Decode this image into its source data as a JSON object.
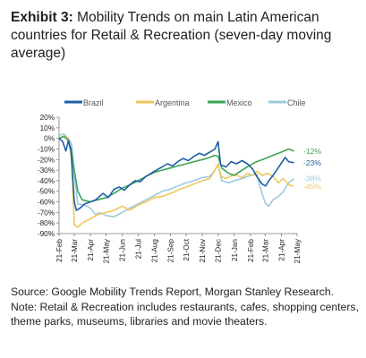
{
  "title": {
    "lead": "Exhibit 3:",
    "text": "Mobility Trends on main Latin American countries for Retail & Recreation (seven-day moving average)"
  },
  "source": "Source: Google Mobility Trends Report, Morgan Stanley Research. Note: Retail & Recreation includes restaurants, cafes, shopping centers, theme parks, museums, libraries and movie theaters.",
  "colors": {
    "Brazil": "#1f5fa6",
    "Argentina": "#f0c75e",
    "Mexico": "#3aa457",
    "Chile": "#9ccbe0",
    "axis": "#7a7a7a",
    "text": "#222222"
  },
  "chart_data": {
    "type": "line",
    "legend_position": "top",
    "grid": false,
    "ylim": [
      -90,
      20
    ],
    "yticks": [
      20,
      10,
      0,
      -10,
      -20,
      -30,
      -40,
      -50,
      -60,
      -70,
      -80,
      -90
    ],
    "ytick_labels": [
      "20%",
      "10%",
      "0%",
      "-10%",
      "-20%",
      "-30%",
      "-40%",
      "-50%",
      "-60%",
      "-70%",
      "-80%",
      "-90%"
    ],
    "xlim": [
      "2020-02-21",
      "2021-05-21"
    ],
    "xticks": [
      "2020-02-21",
      "2020-03-21",
      "2020-04-21",
      "2020-05-21",
      "2020-06-21",
      "2020-07-21",
      "2020-08-21",
      "2020-09-21",
      "2020-10-21",
      "2020-11-21",
      "2020-12-21",
      "2021-01-21",
      "2021-02-21",
      "2021-03-21",
      "2021-04-21",
      "2021-05-21"
    ],
    "xtick_labels": [
      "21-Feb",
      "21-Mar",
      "21-Apr",
      "21-May",
      "21-Jun",
      "21-Jul",
      "21-Aug",
      "21-Sep",
      "21-Oct",
      "21-Nov",
      "21-Dec",
      "21-Jan",
      "21-Feb",
      "21-Mar",
      "21-Apr",
      "21-May"
    ],
    "series": [
      {
        "name": "Brazil",
        "end_label": "-23%",
        "points": [
          [
            "2020-02-21",
            0
          ],
          [
            "2020-02-28",
            -3
          ],
          [
            "2020-03-05",
            -12
          ],
          [
            "2020-03-10",
            -2
          ],
          [
            "2020-03-15",
            -12
          ],
          [
            "2020-03-21",
            -60
          ],
          [
            "2020-03-25",
            -68
          ],
          [
            "2020-04-01",
            -66
          ],
          [
            "2020-04-10",
            -62
          ],
          [
            "2020-04-21",
            -60
          ],
          [
            "2020-05-01",
            -58
          ],
          [
            "2020-05-15",
            -52
          ],
          [
            "2020-05-25",
            -56
          ],
          [
            "2020-06-05",
            -48
          ],
          [
            "2020-06-15",
            -46
          ],
          [
            "2020-06-25",
            -49
          ],
          [
            "2020-07-05",
            -44
          ],
          [
            "2020-07-15",
            -40
          ],
          [
            "2020-07-25",
            -41
          ],
          [
            "2020-08-05",
            -36
          ],
          [
            "2020-08-15",
            -33
          ],
          [
            "2020-08-25",
            -30
          ],
          [
            "2020-09-05",
            -27
          ],
          [
            "2020-09-15",
            -24
          ],
          [
            "2020-09-25",
            -26
          ],
          [
            "2020-10-05",
            -22
          ],
          [
            "2020-10-15",
            -19
          ],
          [
            "2020-10-25",
            -21
          ],
          [
            "2020-11-05",
            -17
          ],
          [
            "2020-11-15",
            -14
          ],
          [
            "2020-11-25",
            -16
          ],
          [
            "2020-12-05",
            -13
          ],
          [
            "2020-12-15",
            -10
          ],
          [
            "2020-12-21",
            -3
          ],
          [
            "2020-12-26",
            -25
          ],
          [
            "2021-01-05",
            -27
          ],
          [
            "2021-01-15",
            -22
          ],
          [
            "2021-01-25",
            -24
          ],
          [
            "2021-02-05",
            -21
          ],
          [
            "2021-02-15",
            -24
          ],
          [
            "2021-02-25",
            -29
          ],
          [
            "2021-03-05",
            -36
          ],
          [
            "2021-03-15",
            -43
          ],
          [
            "2021-03-22",
            -45
          ],
          [
            "2021-03-28",
            -40
          ],
          [
            "2021-04-05",
            -35
          ],
          [
            "2021-04-12",
            -30
          ],
          [
            "2021-04-20",
            -24
          ],
          [
            "2021-04-28",
            -18
          ],
          [
            "2021-05-05",
            -22
          ],
          [
            "2021-05-15",
            -23
          ]
        ]
      },
      {
        "name": "Argentina",
        "end_label": "-45%",
        "points": [
          [
            "2020-02-21",
            0
          ],
          [
            "2020-03-01",
            2
          ],
          [
            "2020-03-10",
            0
          ],
          [
            "2020-03-16",
            -20
          ],
          [
            "2020-03-21",
            -82
          ],
          [
            "2020-03-28",
            -84
          ],
          [
            "2020-04-05",
            -80
          ],
          [
            "2020-04-21",
            -76
          ],
          [
            "2020-05-05",
            -72
          ],
          [
            "2020-05-21",
            -70
          ],
          [
            "2020-06-05",
            -68
          ],
          [
            "2020-06-21",
            -64
          ],
          [
            "2020-07-05",
            -68
          ],
          [
            "2020-07-21",
            -63
          ],
          [
            "2020-08-05",
            -60
          ],
          [
            "2020-08-21",
            -56
          ],
          [
            "2020-09-05",
            -55
          ],
          [
            "2020-09-21",
            -52
          ],
          [
            "2020-10-05",
            -49
          ],
          [
            "2020-10-21",
            -46
          ],
          [
            "2020-11-05",
            -43
          ],
          [
            "2020-11-21",
            -40
          ],
          [
            "2020-12-05",
            -38
          ],
          [
            "2020-12-15",
            -30
          ],
          [
            "2020-12-21",
            -24
          ],
          [
            "2020-12-27",
            -36
          ],
          [
            "2021-01-05",
            -38
          ],
          [
            "2021-01-21",
            -34
          ],
          [
            "2021-02-05",
            -37
          ],
          [
            "2021-02-15",
            -33
          ],
          [
            "2021-02-25",
            -35
          ],
          [
            "2021-03-05",
            -31
          ],
          [
            "2021-03-15",
            -35
          ],
          [
            "2021-03-25",
            -33
          ],
          [
            "2021-04-05",
            -36
          ],
          [
            "2021-04-15",
            -42
          ],
          [
            "2021-04-25",
            -38
          ],
          [
            "2021-05-05",
            -44
          ],
          [
            "2021-05-15",
            -45
          ]
        ]
      },
      {
        "name": "Mexico",
        "end_label": "-12%",
        "points": [
          [
            "2020-02-21",
            0
          ],
          [
            "2020-03-01",
            2
          ],
          [
            "2020-03-10",
            -2
          ],
          [
            "2020-03-15",
            -10
          ],
          [
            "2020-03-21",
            -30
          ],
          [
            "2020-03-28",
            -50
          ],
          [
            "2020-04-05",
            -58
          ],
          [
            "2020-04-21",
            -60
          ],
          [
            "2020-05-05",
            -58
          ],
          [
            "2020-05-21",
            -56
          ],
          [
            "2020-06-05",
            -52
          ],
          [
            "2020-06-21",
            -47
          ],
          [
            "2020-07-05",
            -44
          ],
          [
            "2020-07-21",
            -40
          ],
          [
            "2020-08-05",
            -36
          ],
          [
            "2020-08-21",
            -32
          ],
          [
            "2020-09-05",
            -30
          ],
          [
            "2020-09-21",
            -28
          ],
          [
            "2020-10-05",
            -26
          ],
          [
            "2020-10-21",
            -24
          ],
          [
            "2020-11-05",
            -22
          ],
          [
            "2020-11-21",
            -20
          ],
          [
            "2020-12-05",
            -18
          ],
          [
            "2020-12-15",
            -16
          ],
          [
            "2020-12-21",
            -17
          ],
          [
            "2020-12-28",
            -28
          ],
          [
            "2021-01-10",
            -33
          ],
          [
            "2021-01-21",
            -35
          ],
          [
            "2021-02-05",
            -30
          ],
          [
            "2021-02-21",
            -25
          ],
          [
            "2021-03-05",
            -22
          ],
          [
            "2021-03-21",
            -19
          ],
          [
            "2021-04-05",
            -16
          ],
          [
            "2021-04-21",
            -13
          ],
          [
            "2021-05-05",
            -10
          ],
          [
            "2021-05-15",
            -12
          ]
        ]
      },
      {
        "name": "Chile",
        "end_label": "-38%",
        "points": [
          [
            "2020-02-21",
            3
          ],
          [
            "2020-03-01",
            4
          ],
          [
            "2020-03-10",
            0
          ],
          [
            "2020-03-16",
            -5
          ],
          [
            "2020-03-21",
            -35
          ],
          [
            "2020-03-28",
            -62
          ],
          [
            "2020-04-10",
            -63
          ],
          [
            "2020-04-21",
            -66
          ],
          [
            "2020-05-01",
            -72
          ],
          [
            "2020-05-10",
            -70
          ],
          [
            "2020-05-21",
            -73
          ],
          [
            "2020-06-05",
            -74
          ],
          [
            "2020-06-21",
            -70
          ],
          [
            "2020-07-05",
            -66
          ],
          [
            "2020-07-21",
            -62
          ],
          [
            "2020-08-05",
            -58
          ],
          [
            "2020-08-21",
            -54
          ],
          [
            "2020-09-05",
            -50
          ],
          [
            "2020-09-21",
            -48
          ],
          [
            "2020-10-05",
            -45
          ],
          [
            "2020-10-21",
            -42
          ],
          [
            "2020-11-05",
            -40
          ],
          [
            "2020-11-21",
            -37
          ],
          [
            "2020-12-05",
            -36
          ],
          [
            "2020-12-15",
            -30
          ],
          [
            "2020-12-21",
            -25
          ],
          [
            "2020-12-28",
            -40
          ],
          [
            "2021-01-10",
            -42
          ],
          [
            "2021-01-21",
            -40
          ],
          [
            "2021-02-05",
            -38
          ],
          [
            "2021-02-21",
            -35
          ],
          [
            "2021-03-05",
            -34
          ],
          [
            "2021-03-15",
            -52
          ],
          [
            "2021-03-22",
            -62
          ],
          [
            "2021-03-28",
            -64
          ],
          [
            "2021-04-05",
            -58
          ],
          [
            "2021-04-15",
            -55
          ],
          [
            "2021-04-25",
            -50
          ],
          [
            "2021-05-05",
            -42
          ],
          [
            "2021-05-15",
            -38
          ]
        ]
      }
    ]
  }
}
